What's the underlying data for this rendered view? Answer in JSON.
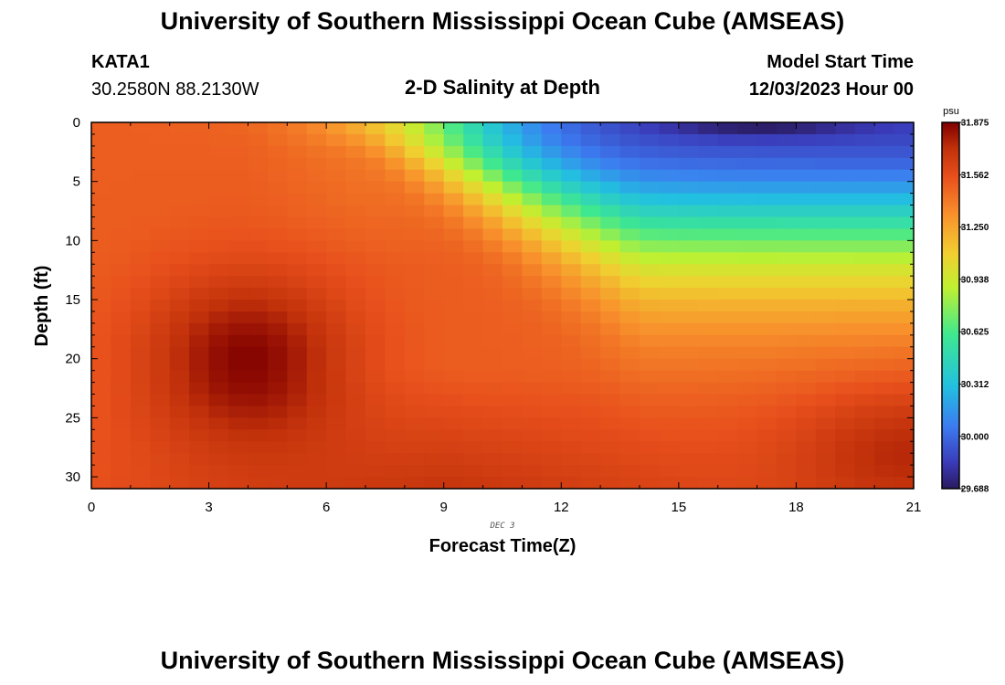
{
  "header": {
    "title": "University of Southern Mississippi Ocean Cube (AMSEAS)",
    "station": "KATA1",
    "coords": "30.2580N  88.2130W",
    "plot_title": "2-D Salinity at Depth",
    "model_label": "Model Start Time",
    "model_time": "12/03/2023 Hour 00"
  },
  "footer": {
    "title": "University of Southern Mississippi Ocean Cube (AMSEAS)"
  },
  "chart_data": {
    "type": "heatmap",
    "title": "2-D Salinity at Depth",
    "xlabel": "Forecast Time(Z)",
    "ylabel": "Depth (ft)",
    "x_ticks": [
      0,
      3,
      6,
      9,
      12,
      15,
      18,
      21
    ],
    "y_ticks": [
      0,
      5,
      10,
      15,
      20,
      25,
      30
    ],
    "xlim": [
      0,
      21
    ],
    "ylim": [
      0,
      31
    ],
    "date_label": "DEC 3",
    "colorbar": {
      "unit": "psu",
      "min": 29.688,
      "max": 31.875,
      "tick_labels": [
        "31.875",
        "31.562",
        "31.250",
        "30.938",
        "30.625",
        "30.312",
        "30.000",
        "29.688"
      ],
      "tick_values": [
        31.875,
        31.562,
        31.25,
        30.938,
        30.625,
        30.312,
        30.0,
        29.688
      ]
    },
    "features": {
      "deep_max_center": {
        "time_h": 4,
        "depth_ft": 20,
        "value": 31.85
      },
      "surface_fresh_layer": {
        "start_time_h": 7,
        "min_value": 29.7,
        "min_time_h": 17,
        "min_depth_ft": 0
      }
    }
  }
}
